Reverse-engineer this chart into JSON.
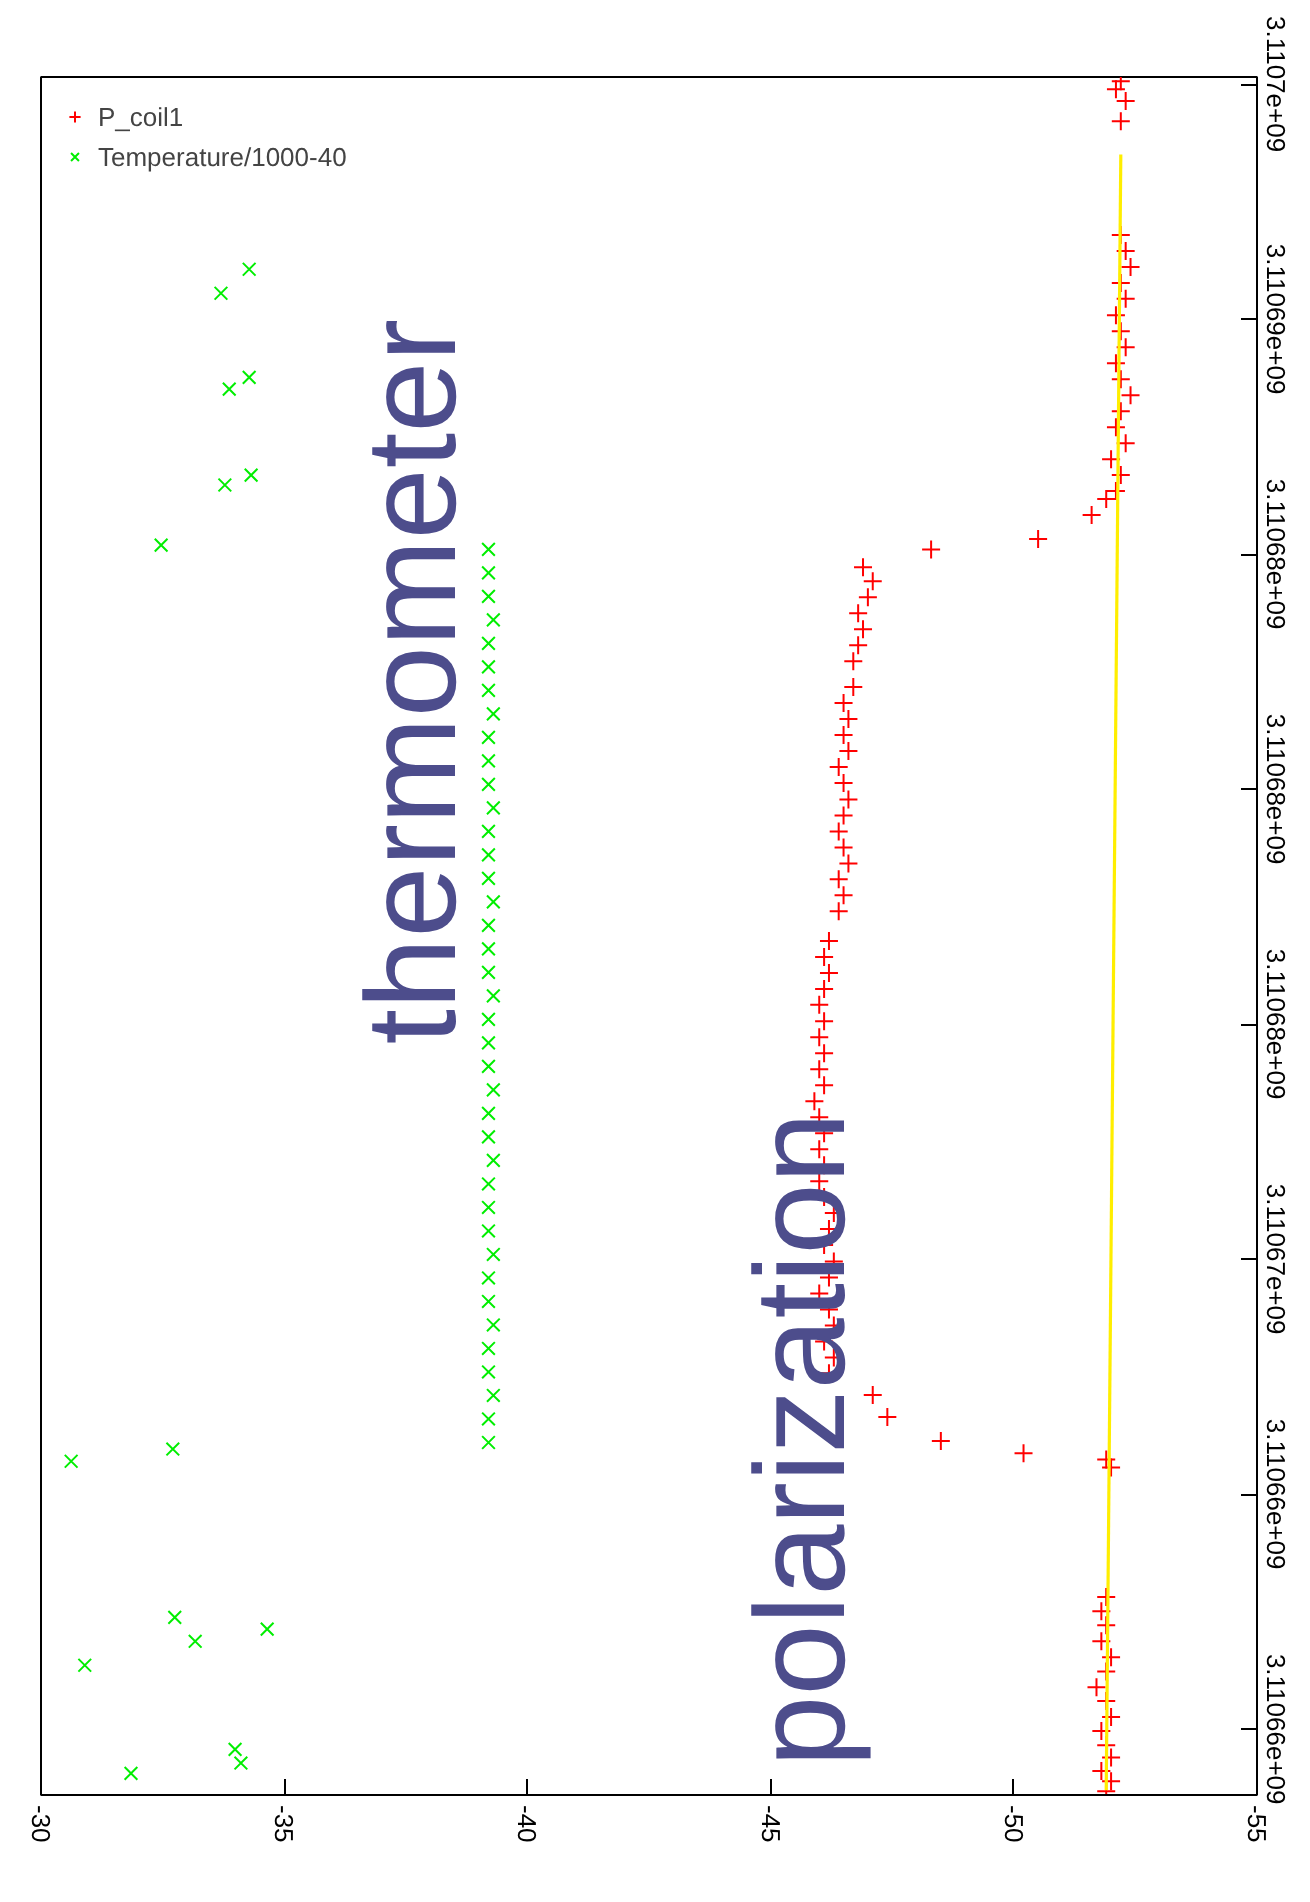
{
  "chart_data": {
    "type": "scatter",
    "ylim": [
      3110658600,
      3110695150
    ],
    "xlim": [
      -30,
      -55
    ],
    "yticks": [
      {
        "value": 3110660000,
        "label": "3.11066e+09"
      },
      {
        "value": 3110665000,
        "label": "3.11066e+09"
      },
      {
        "value": 3110670000,
        "label": "3.11067e+09"
      },
      {
        "value": 3110675000,
        "label": "3.11068e+09"
      },
      {
        "value": 3110680000,
        "label": "3.11068e+09"
      },
      {
        "value": 3110685000,
        "label": "3.11068e+09"
      },
      {
        "value": 3110690000,
        "label": "3.11069e+09"
      },
      {
        "value": 3110695000,
        "label": "3.1107e+09"
      }
    ],
    "xticks": [
      -30,
      -35,
      -40,
      -45,
      -50,
      -55
    ],
    "grid": false,
    "legend": "top left",
    "series": [
      {
        "name": "P_coil1",
        "color": "#ff0000",
        "marker": "cross",
        "values": [
          3110658680,
          3110658890,
          3110659110,
          3110659400,
          3110659660,
          3110659960,
          3110660260,
          3110660600,
          3110660890,
          3110661230,
          3110661530,
          3110661870,
          3110662210,
          3110662510,
          3110662810,
          3110665570,
          3110665740,
          3110665870,
          3110666130,
          3110666640,
          3110667110,
          3110667570,
          3110667910,
          3110668250,
          3110668590,
          3110668930,
          3110669270,
          3110669610,
          3110669950,
          3110670300,
          3110670640,
          3110670980,
          3110671320,
          3110671660,
          3110672000,
          3110672340,
          3110672680,
          3110673020,
          3110673360,
          3110673700,
          3110674040,
          3110674380,
          3110674720,
          3110675060,
          3110675410,
          3110675750,
          3110676090,
          3110676430,
          3110676770,
          3110677400,
          3110677740,
          3110678080,
          3110678420,
          3110678760,
          3110679100,
          3110679440,
          3110679780,
          3110680130,
          3110680470,
          3110680810,
          3110681150,
          3110681490,
          3110681830,
          3110682170,
          3110682720,
          3110683060,
          3110683400,
          3110683740,
          3110684080,
          3110684420,
          3110684720,
          3110685100,
          3110685320,
          3110685830,
          3110686170,
          3110686340,
          3110686680,
          3110687020,
          3110687360,
          3110687700,
          3110688040,
          3110688380,
          3110688720,
          3110689060,
          3110689400,
          3110689740,
          3110690080,
          3110690430,
          3110690770,
          3110691110,
          3110691450,
          3110691790,
          3110694210,
          3110694640,
          3110694890,
          3110695060
        ],
        "x": [
          -51.9,
          -52.0,
          -51.8,
          -52.0,
          -51.9,
          -51.8,
          -52.0,
          -51.9,
          -51.7,
          -51.9,
          -52.0,
          -51.8,
          -51.9,
          -51.8,
          -51.9,
          -52.0,
          -51.9,
          -50.2,
          -48.5,
          -47.4,
          -47.1,
          -46.2,
          -46.3,
          -46.1,
          -46.3,
          -46.2,
          -46.0,
          -46.2,
          -46.3,
          -46.1,
          -46.2,
          -46.3,
          -46.1,
          -46.0,
          -46.1,
          -46.0,
          -46.1,
          -46.0,
          -45.9,
          -46.1,
          -46.0,
          -46.1,
          -46.0,
          -46.1,
          -46.0,
          -46.1,
          -46.2,
          -46.1,
          -46.2,
          -46.4,
          -46.5,
          -46.4,
          -46.6,
          -46.5,
          -46.4,
          -46.5,
          -46.6,
          -46.5,
          -46.4,
          -46.6,
          -46.5,
          -46.6,
          -46.5,
          -46.7,
          -46.7,
          -46.8,
          -46.9,
          -46.8,
          -47.0,
          -47.1,
          -46.9,
          -48.3,
          -50.5,
          -51.6,
          -51.9,
          -52.1,
          -52.2,
          -52.0,
          -52.3,
          -52.1,
          -52.2,
          -52.4,
          -52.2,
          -52.1,
          -52.3,
          -52.2,
          -52.1,
          -52.3,
          -52.2,
          -52.4,
          -52.3,
          -52.2,
          -52.2,
          -52.3,
          -52.1,
          -52.2
        ]
      },
      {
        "name": "Temperature/1000-40",
        "color": "#00ee00",
        "marker": "x",
        "values": [
          3110659060,
          3110659280,
          3110659570,
          3110661360,
          3110661870,
          3110662130,
          3110662380,
          3110665700,
          3110665960,
          3110666100,
          3110666600,
          3110667100,
          3110667600,
          3110668100,
          3110668600,
          3110669100,
          3110669600,
          3110670100,
          3110670600,
          3110671100,
          3110671600,
          3110672100,
          3110672600,
          3110673100,
          3110673600,
          3110674100,
          3110674600,
          3110675100,
          3110675600,
          3110676100,
          3110676600,
          3110677100,
          3110677600,
          3110678100,
          3110678600,
          3110679100,
          3110679600,
          3110680100,
          3110680600,
          3110681100,
          3110681600,
          3110682100,
          3110682600,
          3110683100,
          3110683600,
          3110684100,
          3110684600,
          3110685100,
          3110685190,
          3110686470,
          3110686680,
          3110688510,
          3110688760,
          3110690550,
          3110691060
        ],
        "x": [
          -31.85,
          -34.11,
          -33.99,
          -30.9,
          -33.17,
          -34.65,
          -32.75,
          -30.62,
          -32.71,
          -39.2,
          -39.2,
          -39.3,
          -39.2,
          -39.2,
          -39.3,
          -39.2,
          -39.2,
          -39.3,
          -39.2,
          -39.2,
          -39.2,
          -39.3,
          -39.2,
          -39.2,
          -39.3,
          -39.2,
          -39.2,
          -39.2,
          -39.3,
          -39.2,
          -39.2,
          -39.2,
          -39.3,
          -39.2,
          -39.2,
          -39.2,
          -39.3,
          -39.2,
          -39.2,
          -39.2,
          -39.3,
          -39.2,
          -39.2,
          -39.2,
          -39.3,
          -39.2,
          -39.2,
          -39.2,
          -32.47,
          -33.78,
          -34.32,
          -33.87,
          -34.28,
          -33.7,
          -34.28
        ]
      },
      {
        "type": "line",
        "color": "#ffee00",
        "line_style": "solid",
        "x": [
          -51.9,
          -52.2
        ],
        "values": [
          3110658700,
          3110693500
        ]
      }
    ],
    "annotations": [
      "thermometer",
      "polarization"
    ]
  }
}
